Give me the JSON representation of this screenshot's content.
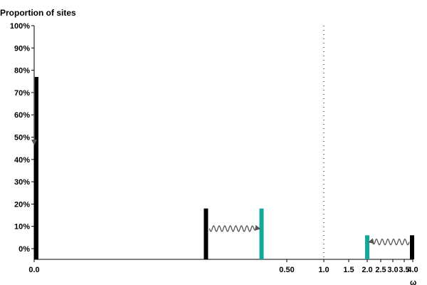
{
  "chart_data": {
    "type": "bar",
    "title": "",
    "ylabel": "Proportion of sites",
    "xlabel": "ω",
    "ylim": [
      0,
      1
    ],
    "y_ticks": [
      "0%",
      "10%",
      "20%",
      "30%",
      "40%",
      "50%",
      "60%",
      "70%",
      "80%",
      "90%",
      "100%"
    ],
    "x_ticks": [
      {
        "value": 0.0,
        "label": "0.0"
      },
      {
        "value": 0.5,
        "label": "0.50"
      },
      {
        "value": 1.0,
        "label": "1.0"
      },
      {
        "value": 1.5,
        "label": "1.5"
      },
      {
        "value": 2.0,
        "label": "2.0"
      },
      {
        "value": 2.5,
        "label": "2.5"
      },
      {
        "value": 3.0,
        "label": "3.0"
      },
      {
        "value": 3.5,
        "label": "3.5"
      },
      {
        "value": 4.0,
        "label": "4.0"
      }
    ],
    "reference_line": {
      "x": 1.0,
      "style": "dotted"
    },
    "bars": [
      {
        "x": 0.0,
        "y": 0.77,
        "group": "black"
      },
      {
        "x": 0.34,
        "y": 0.18,
        "group": "black"
      },
      {
        "x": 0.45,
        "y": 0.18,
        "group": "teal"
      },
      {
        "x": 2.0,
        "y": 0.06,
        "group": "teal"
      },
      {
        "x": 4.0,
        "y": 0.06,
        "group": "black"
      }
    ],
    "arrows": [
      {
        "from_x": 0.0,
        "from_y": 0.77,
        "to_x": 0.0,
        "to_y": 0.47,
        "style": "straight"
      },
      {
        "from_x": 0.34,
        "from_y": 0.09,
        "to_x": 0.45,
        "to_y": 0.09,
        "style": "wavy"
      },
      {
        "from_x": 4.0,
        "from_y": 0.03,
        "to_x": 2.0,
        "to_y": 0.03,
        "style": "wavy"
      }
    ],
    "colors": {
      "black": "#000000",
      "teal": "#14a89a",
      "arrow": "#555555",
      "axis": "#000000"
    }
  }
}
